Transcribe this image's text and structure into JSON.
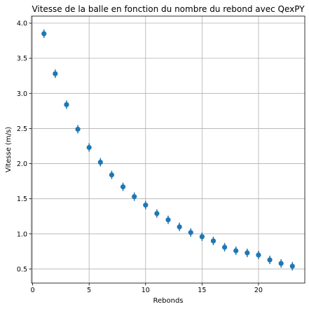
{
  "chart_data": {
    "type": "scatter",
    "title": "Vitesse de la balle en fonction du nombre du rebond avec QexPY",
    "xlabel": "Rebonds",
    "ylabel": "Vitesse (m/s)",
    "xlim": [
      -0.1,
      24.1
    ],
    "ylim": [
      0.3,
      4.1
    ],
    "xticks": [
      0,
      5,
      10,
      15,
      20
    ],
    "yticks": [
      0.5,
      1.0,
      1.5,
      2.0,
      2.5,
      3.0,
      3.5,
      4.0
    ],
    "xtick_labels": [
      "0",
      "5",
      "10",
      "15",
      "20"
    ],
    "ytick_labels": [
      "0.5",
      "1.0",
      "1.5",
      "2.0",
      "2.5",
      "3.0",
      "3.5",
      "4.0"
    ],
    "grid": true,
    "color": "#1f77b4",
    "x": [
      1,
      2,
      3,
      4,
      5,
      6,
      7,
      8,
      9,
      10,
      11,
      12,
      13,
      14,
      15,
      16,
      17,
      18,
      19,
      20,
      21,
      22,
      23
    ],
    "y": [
      3.85,
      3.28,
      2.84,
      2.49,
      2.23,
      2.02,
      1.84,
      1.67,
      1.53,
      1.41,
      1.29,
      1.2,
      1.1,
      1.02,
      0.96,
      0.9,
      0.81,
      0.76,
      0.73,
      0.7,
      0.63,
      0.58,
      0.54
    ],
    "yerr": [
      0.06,
      0.06,
      0.06,
      0.06,
      0.06,
      0.06,
      0.06,
      0.06,
      0.06,
      0.06,
      0.06,
      0.06,
      0.06,
      0.06,
      0.06,
      0.06,
      0.06,
      0.06,
      0.06,
      0.06,
      0.06,
      0.06,
      0.06
    ]
  }
}
